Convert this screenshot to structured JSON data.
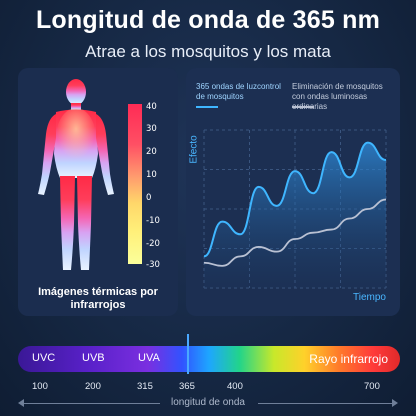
{
  "header": {
    "title": "Longitud de onda de 365 nm",
    "subtitle": "Atrae a los mosquitos y los mata"
  },
  "thermal": {
    "scale": [
      "40",
      "30",
      "20",
      "10",
      "0",
      "-10",
      "-20",
      "-30"
    ],
    "caption": "Imágenes térmicas por infrarrojos"
  },
  "chart": {
    "legend_365": "365 ondas de luzcontrol de mosquitos",
    "legend_ordinary": "Eliminación de mosquitos con ondas luminosas ordinarias",
    "ylabel": "Efecto",
    "xlabel": "Tiempo",
    "colors": {
      "uv365": "#3fb6ff",
      "ordinary": "#b9c1d3"
    }
  },
  "chart_data": {
    "type": "area",
    "x": [
      0,
      1,
      2,
      3,
      4,
      5,
      6,
      7,
      8,
      9,
      10
    ],
    "series": [
      {
        "name": "365 ondas de luzcontrol de mosquitos",
        "values": [
          2.0,
          4.2,
          3.4,
          6.4,
          5.2,
          7.4,
          6.0,
          8.6,
          7.0,
          9.2,
          8.1
        ]
      },
      {
        "name": "Eliminación de mosquitos con ondas luminosas ordinarias",
        "values": [
          1.6,
          1.4,
          2.0,
          2.6,
          2.3,
          3.1,
          3.5,
          3.7,
          4.4,
          5.0,
          5.6
        ]
      }
    ],
    "xlabel": "Tiempo",
    "ylabel": "Efecto",
    "ylim": [
      0,
      10
    ]
  },
  "spectrum": {
    "labels": {
      "uvc": "UVC",
      "uvb": "UVB",
      "uva": "UVA",
      "ir": "Rayo infrarrojo"
    },
    "wavelengths": [
      "100",
      "200",
      "315",
      "365",
      "400",
      "700"
    ],
    "axis_title": "longitud de onda"
  }
}
